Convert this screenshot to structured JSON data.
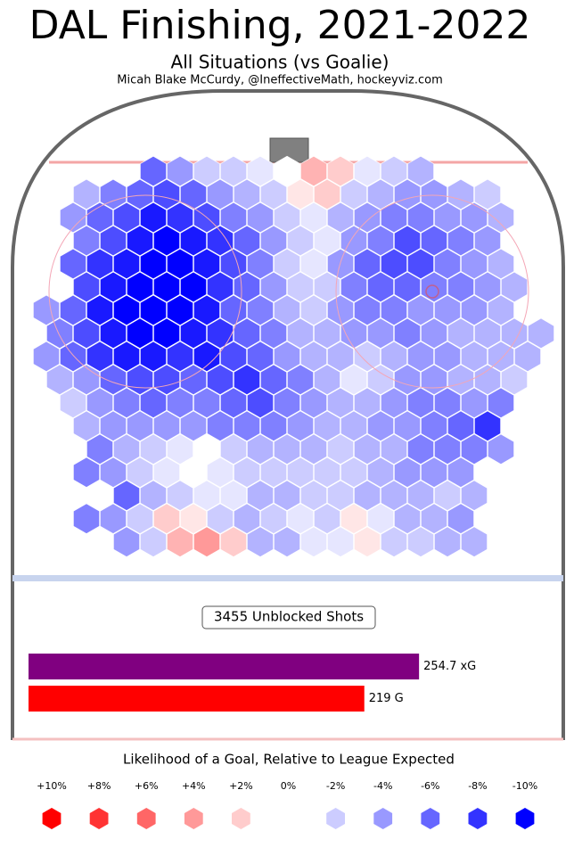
{
  "chart_data": [
    {
      "type": "hexbin",
      "title": "DAL Finishing, 2021-2022",
      "subtitle": "All Situations (vs Goalie)",
      "credit": "Micah Blake McCurdy, @IneffectiveMath, hockeyviz.com",
      "rows": [
        [
          null,
          null,
          null,
          null,
          -6,
          -4,
          -2,
          -2,
          -1,
          0,
          3,
          2,
          -1,
          -2,
          -3,
          null,
          null,
          null,
          null
        ],
        [
          null,
          -3,
          -5,
          -6,
          -7,
          -6,
          -4,
          -3,
          -2,
          1,
          2,
          -2,
          -3,
          -4,
          -4,
          -3,
          -2,
          null,
          null
        ],
        [
          null,
          -4,
          -6,
          -7,
          -9,
          -8,
          -7,
          -5,
          -4,
          -2,
          -1,
          -3,
          -4,
          -5,
          -5,
          -4,
          -4,
          -3,
          null
        ],
        [
          null,
          -5,
          -7,
          -9,
          -10,
          -9,
          -8,
          -6,
          -4,
          -2,
          -1,
          -4,
          -5,
          -7,
          -6,
          -5,
          -4,
          null,
          null
        ],
        [
          null,
          -6,
          -8,
          -9,
          -10,
          -10,
          -9,
          -7,
          -5,
          -2,
          -1,
          -4,
          -6,
          -7,
          -7,
          -5,
          -4,
          -3,
          null
        ],
        [
          null,
          -7,
          -9,
          -10,
          -10,
          -10,
          -8,
          -6,
          -4,
          -2,
          -2,
          -5,
          -6,
          -6,
          -5,
          -5,
          -4,
          -3,
          null
        ],
        [
          -4,
          -6,
          -9,
          -10,
          -10,
          -10,
          -9,
          -6,
          -5,
          -3,
          -2,
          -4,
          -5,
          -5,
          -4,
          -4,
          -4,
          -3,
          null
        ],
        [
          -5,
          -7,
          -9,
          -10,
          -10,
          -9,
          -8,
          -6,
          -5,
          -3,
          -3,
          -4,
          -4,
          -5,
          -4,
          -3,
          -3,
          -3,
          -3
        ],
        [
          -4,
          -6,
          -8,
          -9,
          -9,
          -8,
          -9,
          -7,
          -6,
          -4,
          -3,
          -3,
          -2,
          -3,
          -4,
          -4,
          -3,
          -3,
          -3
        ],
        [
          -3,
          -4,
          -6,
          -7,
          -7,
          -6,
          -7,
          -8,
          -6,
          -5,
          -3,
          -1,
          -2,
          -4,
          -4,
          -3,
          -3,
          -2,
          null
        ],
        [
          null,
          -2,
          -4,
          -5,
          -6,
          -5,
          -5,
          -6,
          -7,
          -5,
          -4,
          -3,
          -3,
          -4,
          -5,
          -5,
          -4,
          -5,
          null
        ],
        [
          null,
          -3,
          -4,
          -4,
          -4,
          -4,
          -5,
          -5,
          -5,
          -4,
          -3,
          -3,
          -4,
          -4,
          -5,
          -6,
          -8,
          null,
          null
        ],
        [
          null,
          null,
          -5,
          -3,
          -2,
          -1,
          0,
          -2,
          -3,
          -3,
          -3,
          -2,
          -3,
          -3,
          -5,
          -5,
          -5,
          -4,
          null
        ],
        [
          null,
          -5,
          -4,
          -2,
          -1,
          0,
          -1,
          -2,
          -2,
          -2,
          -2,
          -2,
          -3,
          -4,
          -4,
          -4,
          null,
          null,
          null
        ],
        [
          null,
          null,
          null,
          -6,
          -3,
          -2,
          -1,
          -1,
          -3,
          -3,
          -2,
          -2,
          -3,
          -3,
          -3,
          -2,
          -3,
          null,
          null
        ],
        [
          null,
          -5,
          -4,
          -2,
          2,
          1,
          -2,
          -3,
          -2,
          -1,
          -2,
          1,
          -1,
          -3,
          -3,
          -4,
          null,
          null,
          null
        ],
        [
          null,
          null,
          null,
          -4,
          -2,
          3,
          4,
          2,
          -3,
          -3,
          -1,
          -1,
          1,
          -2,
          -2,
          -3,
          -3,
          null,
          null
        ]
      ],
      "legend": {
        "title": "Likelihood of a Goal, Relative to League Expected",
        "ticks": [
          {
            "value": 10,
            "label": "+10%"
          },
          {
            "value": 8,
            "label": "+8%"
          },
          {
            "value": 6,
            "label": "+6%"
          },
          {
            "value": 4,
            "label": "+4%"
          },
          {
            "value": 2,
            "label": "+2%"
          },
          {
            "value": 0,
            "label": "0%"
          },
          {
            "value": -2,
            "label": "-2%"
          },
          {
            "value": -4,
            "label": "-4%"
          },
          {
            "value": -6,
            "label": "-6%"
          },
          {
            "value": -8,
            "label": "-8%"
          },
          {
            "value": -10,
            "label": "-10%"
          }
        ]
      }
    },
    {
      "type": "bar",
      "annotation": "3455 Unblocked Shots",
      "values": [
        254.7,
        219
      ],
      "value_labels": [
        "254.7 xG",
        "219 G"
      ],
      "colors": [
        "#800080",
        "#ff0000"
      ],
      "xlim": [
        0,
        336
      ]
    }
  ]
}
